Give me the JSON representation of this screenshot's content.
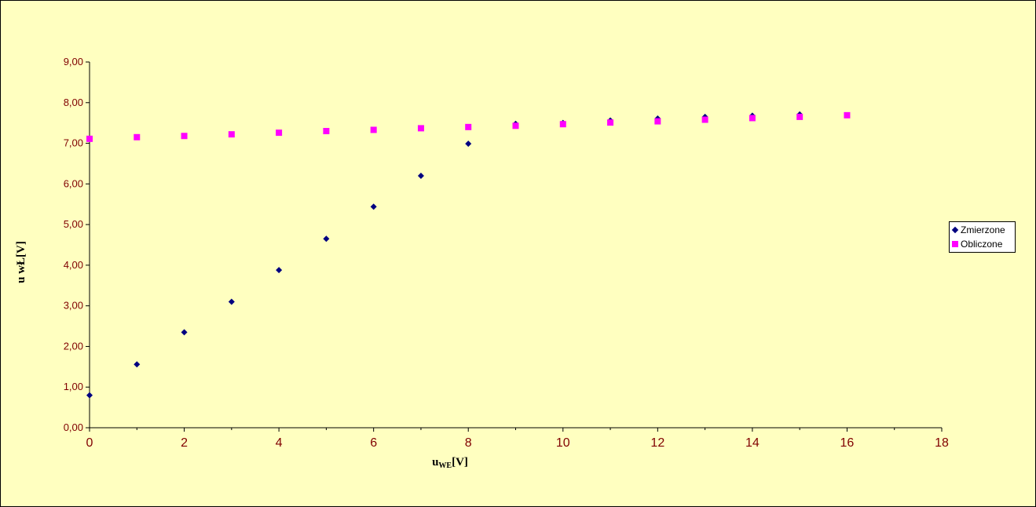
{
  "chart_data": {
    "type": "scatter",
    "title": "",
    "xlabel_main": "u",
    "xlabel_sub": "WE",
    "xlabel_unit": "[V]",
    "ylabel": "u wŁ[V]",
    "xlim": [
      0,
      18
    ],
    "ylim": [
      0,
      9
    ],
    "x_ticks": [
      "0",
      "2",
      "4",
      "6",
      "8",
      "10",
      "12",
      "14",
      "16",
      "18"
    ],
    "y_ticks": [
      "0,00",
      "1,00",
      "2,00",
      "3,00",
      "4,00",
      "5,00",
      "6,00",
      "7,00",
      "8,00",
      "9,00"
    ],
    "grid": false,
    "legend_position": "right",
    "series": [
      {
        "name": "Zmierzone",
        "marker": "diamond",
        "color": "#000080",
        "x": [
          0,
          1,
          2,
          3,
          4,
          5,
          6,
          7,
          8,
          9,
          10,
          11,
          12,
          13,
          14,
          15
        ],
        "y": [
          0.8,
          1.56,
          2.35,
          3.1,
          3.88,
          4.65,
          5.44,
          6.2,
          6.99,
          7.48,
          7.5,
          7.56,
          7.61,
          7.65,
          7.68,
          7.71
        ]
      },
      {
        "name": "Obliczone",
        "marker": "square",
        "color": "#FF00FF",
        "x": [
          0,
          1,
          2,
          3,
          4,
          5,
          6,
          7,
          8,
          9,
          10,
          11,
          12,
          13,
          14,
          15,
          16
        ],
        "y": [
          7.11,
          7.15,
          7.18,
          7.22,
          7.26,
          7.3,
          7.33,
          7.37,
          7.4,
          7.43,
          7.47,
          7.51,
          7.54,
          7.58,
          7.62,
          7.65,
          7.69
        ]
      }
    ]
  }
}
